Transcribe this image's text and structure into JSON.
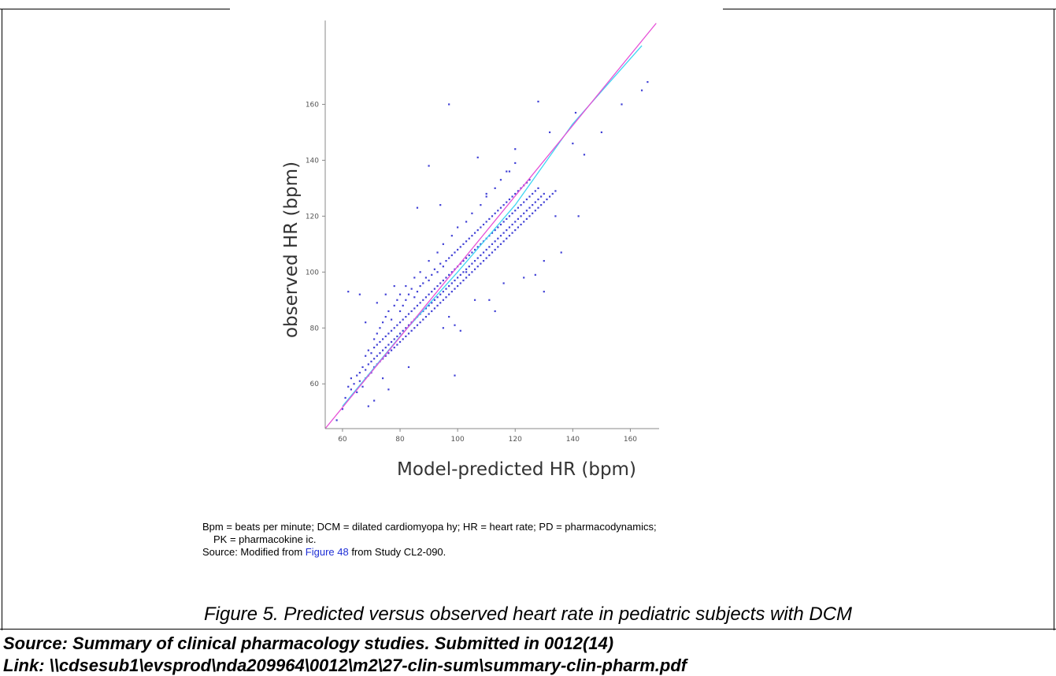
{
  "chart_data": {
    "type": "scatter",
    "title": "",
    "xlabel": "Model-predicted HR (bpm)",
    "ylabel": "observed HR (bpm)",
    "xlim": [
      54,
      170
    ],
    "ylim": [
      44,
      190
    ],
    "xticks": [
      60,
      80,
      100,
      120,
      140,
      160
    ],
    "yticks": [
      60,
      80,
      100,
      120,
      140,
      160
    ],
    "xtick_labels": [
      "60",
      "80",
      "100",
      "120",
      "140",
      "160"
    ],
    "ytick_labels": [
      "60",
      "80",
      "100",
      "120",
      "140",
      "160"
    ],
    "grid": false,
    "identity_line": {
      "color": "#e64fd6",
      "points": [
        [
          54,
          44
        ],
        [
          169,
          189
        ]
      ]
    },
    "trend_line": {
      "color": "#3fd5f2",
      "points": [
        [
          60,
          52
        ],
        [
          80,
          77
        ],
        [
          100,
          100
        ],
        [
          120,
          124
        ],
        [
          140,
          153
        ],
        [
          164,
          181
        ]
      ]
    },
    "point_color": "#4141d6",
    "points": [
      [
        58,
        47
      ],
      [
        60,
        51
      ],
      [
        61,
        55
      ],
      [
        62,
        59
      ],
      [
        63,
        58
      ],
      [
        63,
        62
      ],
      [
        64,
        60
      ],
      [
        65,
        57
      ],
      [
        65,
        63
      ],
      [
        66,
        61
      ],
      [
        66,
        64
      ],
      [
        67,
        59
      ],
      [
        67,
        66
      ],
      [
        68,
        62
      ],
      [
        68,
        65
      ],
      [
        68,
        70
      ],
      [
        69,
        63
      ],
      [
        69,
        67
      ],
      [
        69,
        72
      ],
      [
        70,
        64
      ],
      [
        70,
        68
      ],
      [
        70,
        71
      ],
      [
        71,
        66
      ],
      [
        71,
        69
      ],
      [
        71,
        73
      ],
      [
        71,
        76
      ],
      [
        72,
        67
      ],
      [
        72,
        70
      ],
      [
        72,
        74
      ],
      [
        72,
        78
      ],
      [
        73,
        68
      ],
      [
        73,
        71
      ],
      [
        73,
        75
      ],
      [
        73,
        80
      ],
      [
        74,
        69
      ],
      [
        74,
        72
      ],
      [
        74,
        76
      ],
      [
        74,
        82
      ],
      [
        75,
        70
      ],
      [
        75,
        73
      ],
      [
        75,
        77
      ],
      [
        75,
        84
      ],
      [
        76,
        71
      ],
      [
        76,
        74
      ],
      [
        76,
        78
      ],
      [
        76,
        86
      ],
      [
        77,
        72
      ],
      [
        77,
        75
      ],
      [
        77,
        79
      ],
      [
        77,
        83
      ],
      [
        78,
        73
      ],
      [
        78,
        76
      ],
      [
        78,
        80
      ],
      [
        78,
        88
      ],
      [
        79,
        74
      ],
      [
        79,
        77
      ],
      [
        79,
        81
      ],
      [
        79,
        90
      ],
      [
        80,
        75
      ],
      [
        80,
        78
      ],
      [
        80,
        82
      ],
      [
        80,
        86
      ],
      [
        80,
        92
      ],
      [
        81,
        76
      ],
      [
        81,
        79
      ],
      [
        81,
        83
      ],
      [
        81,
        88
      ],
      [
        82,
        77
      ],
      [
        82,
        80
      ],
      [
        82,
        84
      ],
      [
        82,
        90
      ],
      [
        82,
        95
      ],
      [
        83,
        78
      ],
      [
        83,
        81
      ],
      [
        83,
        85
      ],
      [
        83,
        92
      ],
      [
        84,
        79
      ],
      [
        84,
        82
      ],
      [
        84,
        86
      ],
      [
        84,
        94
      ],
      [
        85,
        80
      ],
      [
        85,
        83
      ],
      [
        85,
        87
      ],
      [
        85,
        91
      ],
      [
        85,
        98
      ],
      [
        86,
        81
      ],
      [
        86,
        84
      ],
      [
        86,
        88
      ],
      [
        86,
        93
      ],
      [
        87,
        82
      ],
      [
        87,
        85
      ],
      [
        87,
        89
      ],
      [
        87,
        95
      ],
      [
        87,
        100
      ],
      [
        88,
        83
      ],
      [
        88,
        86
      ],
      [
        88,
        90
      ],
      [
        88,
        96
      ],
      [
        89,
        84
      ],
      [
        89,
        87
      ],
      [
        89,
        91
      ],
      [
        89,
        98
      ],
      [
        90,
        85
      ],
      [
        90,
        88
      ],
      [
        90,
        92
      ],
      [
        90,
        97
      ],
      [
        90,
        104
      ],
      [
        91,
        86
      ],
      [
        91,
        89
      ],
      [
        91,
        93
      ],
      [
        91,
        99
      ],
      [
        92,
        87
      ],
      [
        92,
        90
      ],
      [
        92,
        94
      ],
      [
        92,
        101
      ],
      [
        93,
        88
      ],
      [
        93,
        91
      ],
      [
        93,
        95
      ],
      [
        93,
        100
      ],
      [
        93,
        107
      ],
      [
        94,
        89
      ],
      [
        94,
        92
      ],
      [
        94,
        96
      ],
      [
        94,
        103
      ],
      [
        95,
        90
      ],
      [
        95,
        93
      ],
      [
        95,
        97
      ],
      [
        95,
        102
      ],
      [
        95,
        110
      ],
      [
        96,
        91
      ],
      [
        96,
        94
      ],
      [
        96,
        98
      ],
      [
        96,
        104
      ],
      [
        97,
        92
      ],
      [
        97,
        95
      ],
      [
        97,
        99
      ],
      [
        97,
        105
      ],
      [
        98,
        93
      ],
      [
        98,
        96
      ],
      [
        98,
        100
      ],
      [
        98,
        106
      ],
      [
        98,
        113
      ],
      [
        99,
        94
      ],
      [
        99,
        97
      ],
      [
        99,
        101
      ],
      [
        99,
        107
      ],
      [
        100,
        95
      ],
      [
        100,
        98
      ],
      [
        100,
        102
      ],
      [
        100,
        108
      ],
      [
        100,
        116
      ],
      [
        101,
        96
      ],
      [
        101,
        99
      ],
      [
        101,
        103
      ],
      [
        101,
        109
      ],
      [
        102,
        97
      ],
      [
        102,
        100
      ],
      [
        102,
        104
      ],
      [
        102,
        110
      ],
      [
        103,
        98
      ],
      [
        103,
        101
      ],
      [
        103,
        105
      ],
      [
        103,
        111
      ],
      [
        103,
        118
      ],
      [
        104,
        99
      ],
      [
        104,
        102
      ],
      [
        104,
        106
      ],
      [
        104,
        112
      ],
      [
        105,
        100
      ],
      [
        105,
        103
      ],
      [
        105,
        107
      ],
      [
        105,
        113
      ],
      [
        105,
        121
      ],
      [
        106,
        101
      ],
      [
        106,
        104
      ],
      [
        106,
        108
      ],
      [
        106,
        114
      ],
      [
        107,
        102
      ],
      [
        107,
        105
      ],
      [
        107,
        109
      ],
      [
        107,
        115
      ],
      [
        108,
        103
      ],
      [
        108,
        106
      ],
      [
        108,
        110
      ],
      [
        108,
        116
      ],
      [
        108,
        124
      ],
      [
        109,
        104
      ],
      [
        109,
        107
      ],
      [
        109,
        111
      ],
      [
        109,
        117
      ],
      [
        110,
        105
      ],
      [
        110,
        108
      ],
      [
        110,
        112
      ],
      [
        110,
        118
      ],
      [
        110,
        127
      ],
      [
        111,
        106
      ],
      [
        111,
        109
      ],
      [
        111,
        113
      ],
      [
        111,
        119
      ],
      [
        112,
        107
      ],
      [
        112,
        110
      ],
      [
        112,
        114
      ],
      [
        112,
        120
      ],
      [
        113,
        108
      ],
      [
        113,
        111
      ],
      [
        113,
        115
      ],
      [
        113,
        121
      ],
      [
        113,
        130
      ],
      [
        114,
        109
      ],
      [
        114,
        112
      ],
      [
        114,
        116
      ],
      [
        114,
        122
      ],
      [
        115,
        110
      ],
      [
        115,
        113
      ],
      [
        115,
        117
      ],
      [
        115,
        123
      ],
      [
        115,
        133
      ],
      [
        116,
        111
      ],
      [
        116,
        114
      ],
      [
        116,
        118
      ],
      [
        116,
        124
      ],
      [
        117,
        112
      ],
      [
        117,
        115
      ],
      [
        117,
        119
      ],
      [
        117,
        125
      ],
      [
        118,
        113
      ],
      [
        118,
        116
      ],
      [
        118,
        120
      ],
      [
        118,
        126
      ],
      [
        118,
        136
      ],
      [
        119,
        114
      ],
      [
        119,
        117
      ],
      [
        119,
        121
      ],
      [
        119,
        127
      ],
      [
        120,
        115
      ],
      [
        120,
        118
      ],
      [
        120,
        122
      ],
      [
        120,
        128
      ],
      [
        120,
        139
      ],
      [
        121,
        116
      ],
      [
        121,
        119
      ],
      [
        121,
        123
      ],
      [
        121,
        129
      ],
      [
        122,
        117
      ],
      [
        122,
        120
      ],
      [
        122,
        124
      ],
      [
        122,
        130
      ],
      [
        123,
        118
      ],
      [
        123,
        121
      ],
      [
        123,
        125
      ],
      [
        123,
        131
      ],
      [
        124,
        119
      ],
      [
        124,
        122
      ],
      [
        124,
        126
      ],
      [
        124,
        132
      ],
      [
        125,
        120
      ],
      [
        125,
        123
      ],
      [
        125,
        127
      ],
      [
        125,
        133
      ],
      [
        126,
        121
      ],
      [
        126,
        124
      ],
      [
        126,
        128
      ],
      [
        127,
        122
      ],
      [
        127,
        125
      ],
      [
        127,
        129
      ],
      [
        128,
        123
      ],
      [
        128,
        126
      ],
      [
        128,
        130
      ],
      [
        129,
        124
      ],
      [
        129,
        127
      ],
      [
        130,
        125
      ],
      [
        130,
        128
      ],
      [
        131,
        126
      ],
      [
        132,
        127
      ],
      [
        133,
        128
      ],
      [
        134,
        129
      ],
      [
        62,
        93
      ],
      [
        66,
        92
      ],
      [
        68,
        82
      ],
      [
        72,
        89
      ],
      [
        75,
        92
      ],
      [
        78,
        95
      ],
      [
        83,
        66
      ],
      [
        86,
        123
      ],
      [
        90,
        138
      ],
      [
        94,
        124
      ],
      [
        97,
        160
      ],
      [
        99,
        63
      ],
      [
        103,
        100
      ],
      [
        107,
        141
      ],
      [
        110,
        128
      ],
      [
        113,
        86
      ],
      [
        117,
        136
      ],
      [
        120,
        144
      ],
      [
        123,
        98
      ],
      [
        127,
        99
      ],
      [
        128,
        161
      ],
      [
        130,
        93
      ],
      [
        130,
        104
      ],
      [
        132,
        150
      ],
      [
        134,
        120
      ],
      [
        136,
        107
      ],
      [
        140,
        146
      ],
      [
        141,
        157
      ],
      [
        142,
        120
      ],
      [
        144,
        142
      ],
      [
        150,
        150
      ],
      [
        157,
        160
      ],
      [
        164,
        165
      ],
      [
        166,
        168
      ],
      [
        97,
        84
      ],
      [
        99,
        81
      ],
      [
        101,
        79
      ],
      [
        95,
        80
      ],
      [
        106,
        90
      ],
      [
        111,
        90
      ],
      [
        116,
        96
      ],
      [
        74,
        62
      ],
      [
        76,
        58
      ],
      [
        71,
        54
      ],
      [
        69,
        52
      ]
    ]
  },
  "notes": {
    "abbrev_line1": "Bpm = beats per minute; DCM = dilated cardiomyopa hy; HR = heart rate; PD = pharmacodynamics;",
    "abbrev_line2": "PK = pharmacokine ic.",
    "source_prefix": "Source:  Modified from ",
    "source_link": "Figure 48",
    "source_suffix": " from Study CL2-090."
  },
  "caption": "Figure 5. Predicted versus observed heart rate in pediatric subjects with DCM",
  "footer": {
    "source": "Source: Summary of clinical pharmacology studies. Submitted in 0012(14)",
    "link": "Link: \\\\cdsesub1\\evsprod\\nda209964\\0012\\m2\\27-clin-sum\\summary-clin-pharm.pdf"
  }
}
